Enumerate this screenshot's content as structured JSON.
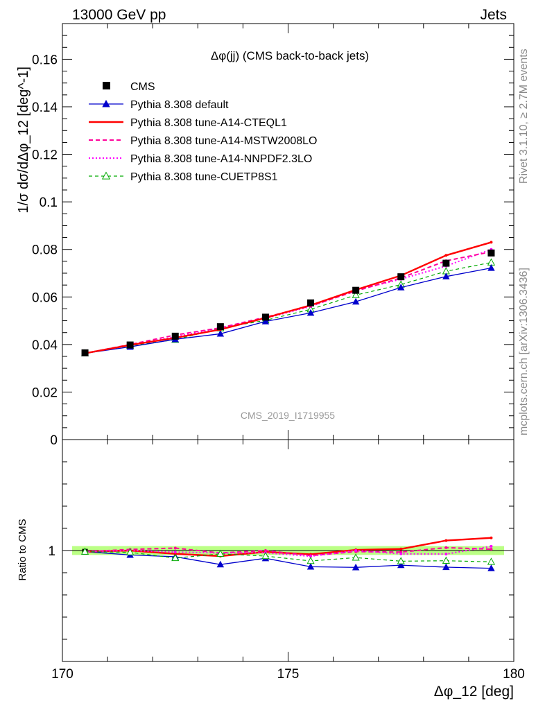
{
  "header": {
    "left": "13000 GeV pp",
    "right": "Jets"
  },
  "side_labels": {
    "top": "Rivet 3.1.10, ≥ 2.7M events",
    "bottom": "mcplots.cern.ch [arXiv:1306.3436]"
  },
  "analysis_label": "CMS_2019_I1719955",
  "chart_data": [
    {
      "type": "line",
      "title": "Δφ(jj) (CMS back-to-back jets)",
      "xlabel": "Δφ_12 [deg]",
      "ylabel": "1/σ dσ/dΔφ_12 [deg^-1]",
      "xlim": [
        170,
        180
      ],
      "ylim": [
        0,
        0.175
      ],
      "x_ticks": [
        "170",
        "175",
        "180"
      ],
      "y_ticks": [
        "0",
        "0.02",
        "0.04",
        "0.06",
        "0.08",
        "0.1",
        "0.12",
        "0.14",
        "0.16"
      ],
      "legend_position": "top-left",
      "x": [
        170.5,
        171.5,
        172.5,
        173.5,
        174.5,
        175.5,
        176.5,
        177.5,
        178.5,
        179.5
      ],
      "series": [
        {
          "name": "CMS",
          "style": "data",
          "color": "#000000",
          "values": [
            0.0365,
            0.0398,
            0.0435,
            0.0475,
            0.0515,
            0.0575,
            0.0628,
            0.0685,
            0.0742,
            0.0785
          ]
        },
        {
          "name": "Pythia 8.308 default",
          "style": "solid-triangle",
          "color": "#0000cc",
          "values": [
            0.0363,
            0.039,
            0.0422,
            0.0445,
            0.0497,
            0.0533,
            0.058,
            0.064,
            0.0686,
            0.0722
          ]
        },
        {
          "name": "Pythia 8.308 tune-A14-CTEQL1",
          "style": "solid-thick",
          "color": "#ff0000",
          "values": [
            0.0363,
            0.0398,
            0.0428,
            0.0463,
            0.0512,
            0.0565,
            0.063,
            0.069,
            0.0775,
            0.083
          ]
        },
        {
          "name": "Pythia 8.308 tune-A14-MSTW2008LO",
          "style": "dashed",
          "color": "#ff0099",
          "values": [
            0.0363,
            0.04,
            0.044,
            0.047,
            0.0515,
            0.0562,
            0.0625,
            0.068,
            0.0752,
            0.079
          ]
        },
        {
          "name": "Pythia 8.308 tune-A14-NNPDF2.3LO",
          "style": "dotted",
          "color": "#ff00ff",
          "values": [
            0.0363,
            0.0398,
            0.0432,
            0.047,
            0.051,
            0.056,
            0.0628,
            0.0675,
            0.073,
            0.08
          ]
        },
        {
          "name": "Pythia 8.308 tune-CUETP8S1",
          "style": "dashed-open-triangle",
          "color": "#00aa00",
          "values": [
            0.0363,
            0.0395,
            0.042,
            0.0468,
            0.0502,
            0.0548,
            0.0608,
            0.0652,
            0.0708,
            0.0745
          ]
        }
      ]
    },
    {
      "type": "line",
      "ylabel": "Ratio to CMS",
      "xlim": [
        170,
        180
      ],
      "ylim": [
        0.5,
        1.5
      ],
      "y_ticks": [
        "1"
      ],
      "x": [
        170.5,
        171.5,
        172.5,
        173.5,
        174.5,
        175.5,
        176.5,
        177.5,
        178.5,
        179.5
      ],
      "band": {
        "color": "#aaff66",
        "halfwidth": 0.02
      },
      "series": [
        {
          "name": "Pythia 8.308 default",
          "color": "#0000cc",
          "values": [
            0.995,
            0.98,
            0.972,
            0.937,
            0.965,
            0.927,
            0.924,
            0.934,
            0.925,
            0.92
          ]
        },
        {
          "name": "Pythia 8.308 tune-A14-CTEQL1",
          "color": "#ff0000",
          "values": [
            0.995,
            1.0,
            0.985,
            0.975,
            0.994,
            0.983,
            1.003,
            1.007,
            1.045,
            1.057
          ]
        },
        {
          "name": "Pythia 8.308 tune-A14-MSTW2008LO",
          "color": "#ff0099",
          "values": [
            0.995,
            1.005,
            1.011,
            0.989,
            1.0,
            0.977,
            0.995,
            0.993,
            1.013,
            1.006
          ]
        },
        {
          "name": "Pythia 8.308 tune-A14-NNPDF2.3LO",
          "color": "#ff00ff",
          "values": [
            0.995,
            1.0,
            0.993,
            0.989,
            0.99,
            0.974,
            1.0,
            0.985,
            0.984,
            1.019
          ]
        },
        {
          "name": "Pythia 8.308 tune-CUETP8S1",
          "color": "#00aa00",
          "values": [
            0.995,
            0.992,
            0.966,
            0.985,
            0.975,
            0.953,
            0.968,
            0.952,
            0.954,
            0.949
          ]
        }
      ]
    }
  ]
}
